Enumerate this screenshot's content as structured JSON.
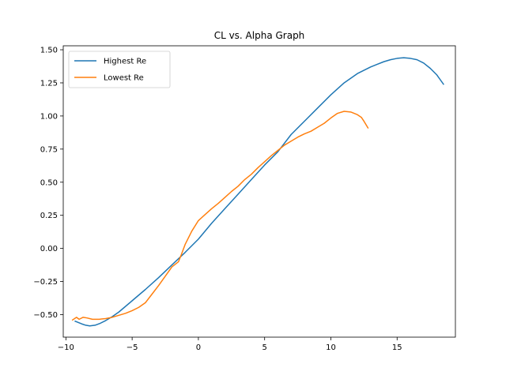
{
  "chart_data": {
    "type": "line",
    "title": "CL vs. Alpha Graph",
    "xlabel": "",
    "ylabel": "",
    "xlim": [
      -10.2,
      19.4
    ],
    "ylim": [
      -0.67,
      1.53
    ],
    "xticks": [
      -10,
      -5,
      0,
      5,
      10,
      15
    ],
    "xtick_labels": [
      "−10",
      "−5",
      "0",
      "5",
      "10",
      "15"
    ],
    "yticks": [
      -0.5,
      -0.25,
      0.0,
      0.25,
      0.5,
      0.75,
      1.0,
      1.25,
      1.5
    ],
    "ytick_labels": [
      "−0.50",
      "−0.25",
      "0.00",
      "0.25",
      "0.50",
      "0.75",
      "1.00",
      "1.25",
      "1.50"
    ],
    "grid": false,
    "legend_position": "top-left",
    "series": [
      {
        "name": "Highest Re",
        "color": "#1f77b4",
        "x": [
          -9.3,
          -8.8,
          -8.5,
          -8.2,
          -7.8,
          -7.4,
          -7.0,
          -6.5,
          -6.0,
          -5.0,
          -4.0,
          -3.0,
          -2.0,
          -1.0,
          0.0,
          1.0,
          2.0,
          3.0,
          4.0,
          5.0,
          6.0,
          7.0,
          8.0,
          9.0,
          10.0,
          11.0,
          12.0,
          13.0,
          13.5,
          14.0,
          14.5,
          15.0,
          15.5,
          16.0,
          16.5,
          17.0,
          17.5,
          18.0,
          18.5
        ],
        "y": [
          -0.55,
          -0.57,
          -0.58,
          -0.585,
          -0.58,
          -0.565,
          -0.545,
          -0.515,
          -0.48,
          -0.395,
          -0.31,
          -0.22,
          -0.125,
          -0.03,
          0.07,
          0.19,
          0.3,
          0.41,
          0.52,
          0.63,
          0.73,
          0.86,
          0.96,
          1.06,
          1.16,
          1.25,
          1.32,
          1.37,
          1.39,
          1.41,
          1.425,
          1.435,
          1.44,
          1.435,
          1.425,
          1.4,
          1.36,
          1.31,
          1.24
        ]
      },
      {
        "name": "Lowest Re",
        "color": "#ff7f0e",
        "x": [
          -9.5,
          -9.2,
          -9.0,
          -8.7,
          -8.4,
          -8.0,
          -7.5,
          -7.0,
          -6.5,
          -6.0,
          -5.5,
          -5.0,
          -4.5,
          -4.0,
          -3.5,
          -3.0,
          -2.5,
          -2.0,
          -1.5,
          -1.3,
          -1.0,
          -0.5,
          0.0,
          0.5,
          1.0,
          1.5,
          2.0,
          2.5,
          3.0,
          3.5,
          4.0,
          4.5,
          5.0,
          5.5,
          6.0,
          6.5,
          7.0,
          7.5,
          8.0,
          8.5,
          9.0,
          9.5,
          10.0,
          10.5,
          11.0,
          11.5,
          12.0,
          12.3,
          12.5,
          12.8
        ],
        "y": [
          -0.54,
          -0.52,
          -0.535,
          -0.52,
          -0.525,
          -0.535,
          -0.535,
          -0.53,
          -0.52,
          -0.505,
          -0.49,
          -0.47,
          -0.445,
          -0.41,
          -0.345,
          -0.28,
          -0.21,
          -0.14,
          -0.1,
          -0.05,
          0.03,
          0.13,
          0.21,
          0.255,
          0.3,
          0.34,
          0.385,
          0.43,
          0.47,
          0.52,
          0.56,
          0.61,
          0.655,
          0.7,
          0.74,
          0.78,
          0.81,
          0.84,
          0.865,
          0.885,
          0.915,
          0.945,
          0.985,
          1.02,
          1.035,
          1.03,
          1.01,
          0.99,
          0.96,
          0.91
        ]
      }
    ]
  }
}
